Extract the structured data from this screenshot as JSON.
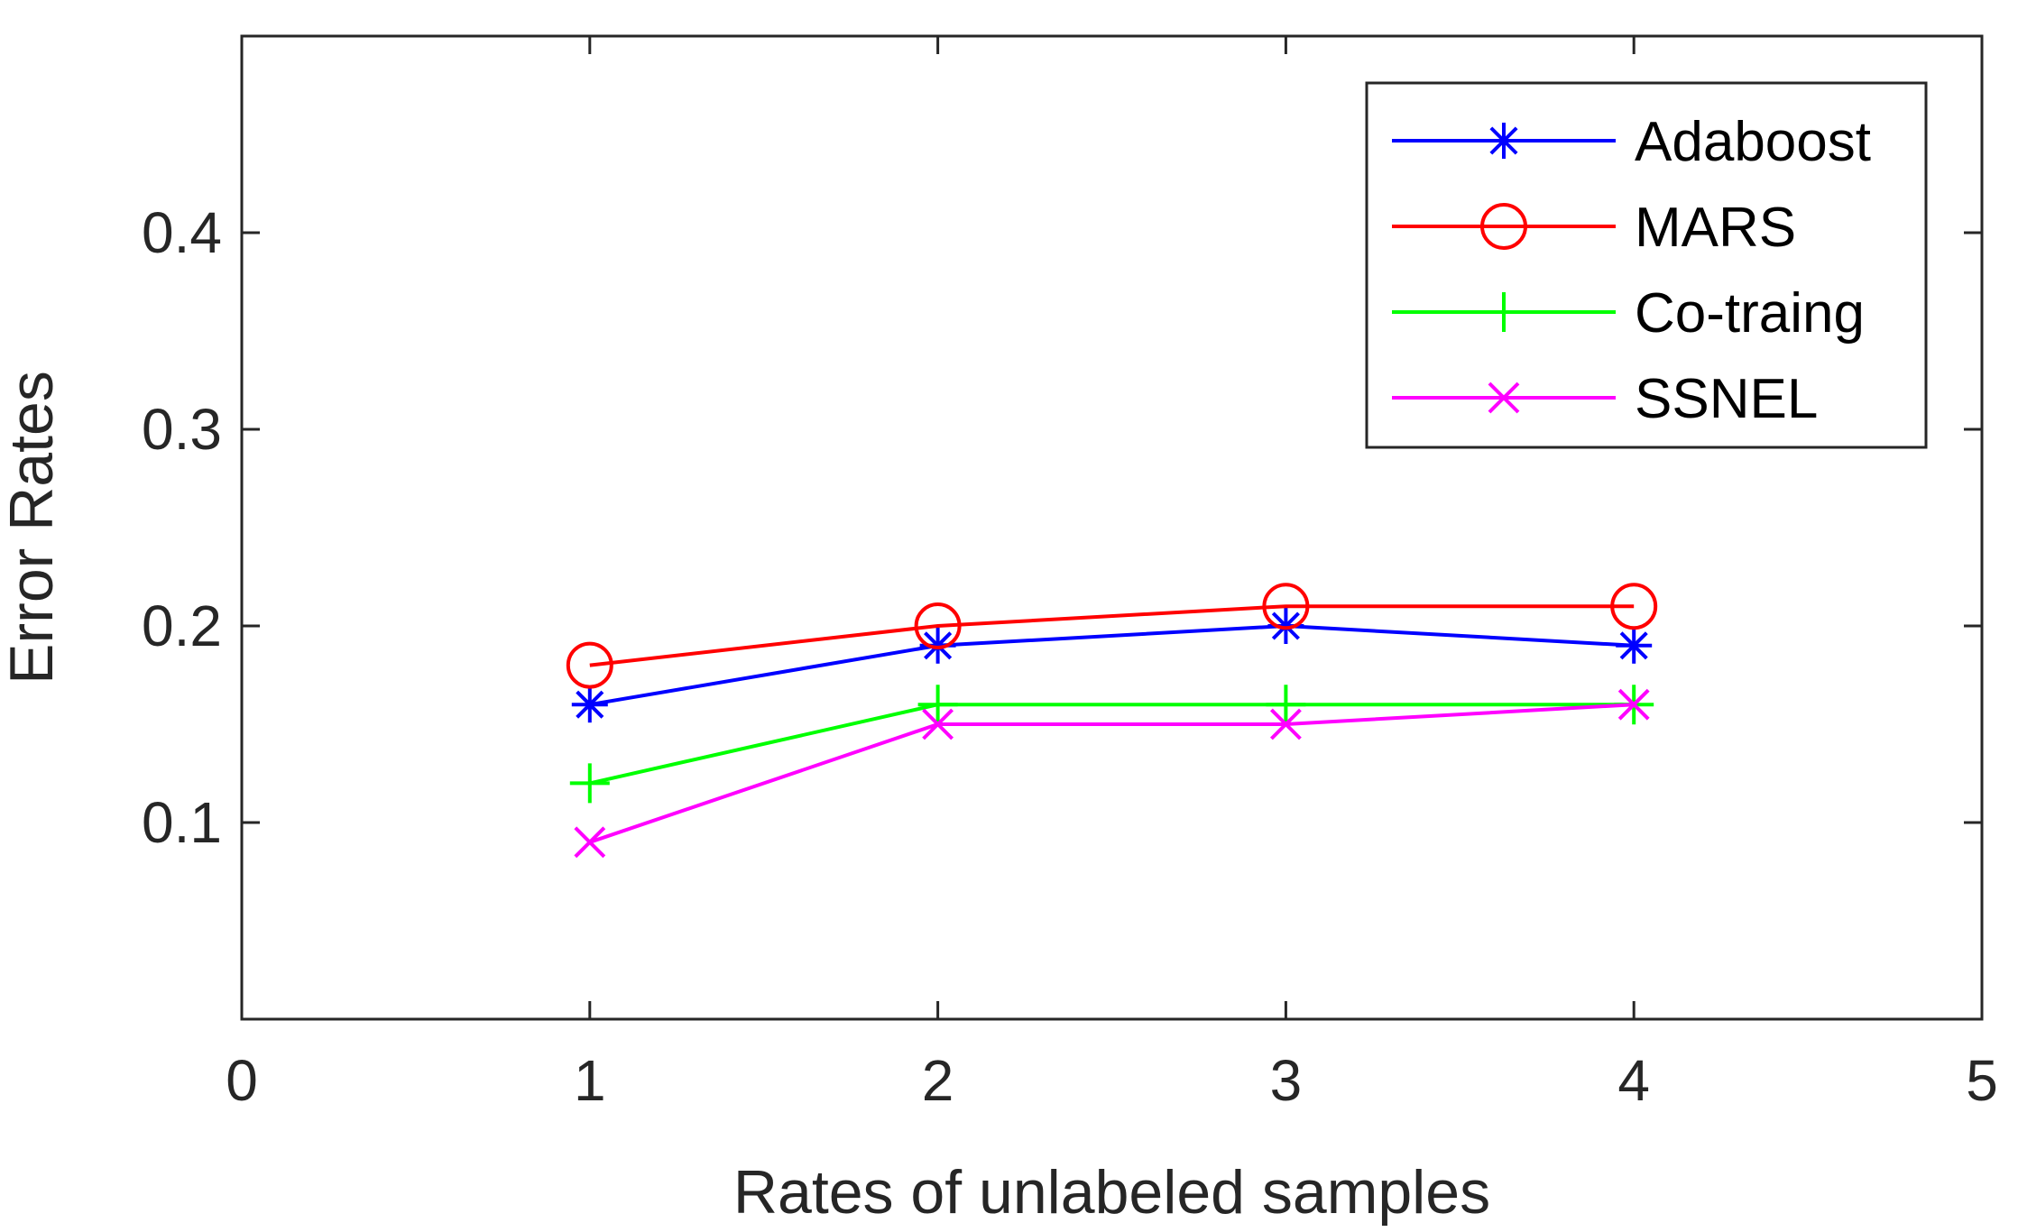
{
  "chart_data": {
    "type": "line",
    "title": "",
    "xlabel": "Rates of unlabeled samples",
    "ylabel": "Error Rates",
    "xlim": [
      0,
      5
    ],
    "ylim": [
      0,
      0.5
    ],
    "xticks": [
      "0",
      "1",
      "2",
      "3",
      "4",
      "5"
    ],
    "yticks": [
      "0.1",
      "0.2",
      "0.3",
      "0.4"
    ],
    "x": [
      1,
      2,
      3,
      4
    ],
    "legend_position": "top-right",
    "grid": false,
    "series": [
      {
        "name": "Adaboost",
        "color": "#0000ff",
        "marker": "asterisk",
        "values": [
          0.16,
          0.19,
          0.2,
          0.19
        ]
      },
      {
        "name": "MARS",
        "color": "#ff0000",
        "marker": "circle",
        "values": [
          0.18,
          0.2,
          0.21,
          0.21
        ]
      },
      {
        "name": "Co-traing",
        "color": "#00ff00",
        "marker": "plus",
        "values": [
          0.12,
          0.16,
          0.16,
          0.16
        ]
      },
      {
        "name": "SSNEL",
        "color": "#ff00ff",
        "marker": "x",
        "values": [
          0.09,
          0.15,
          0.15,
          0.16
        ]
      }
    ]
  }
}
